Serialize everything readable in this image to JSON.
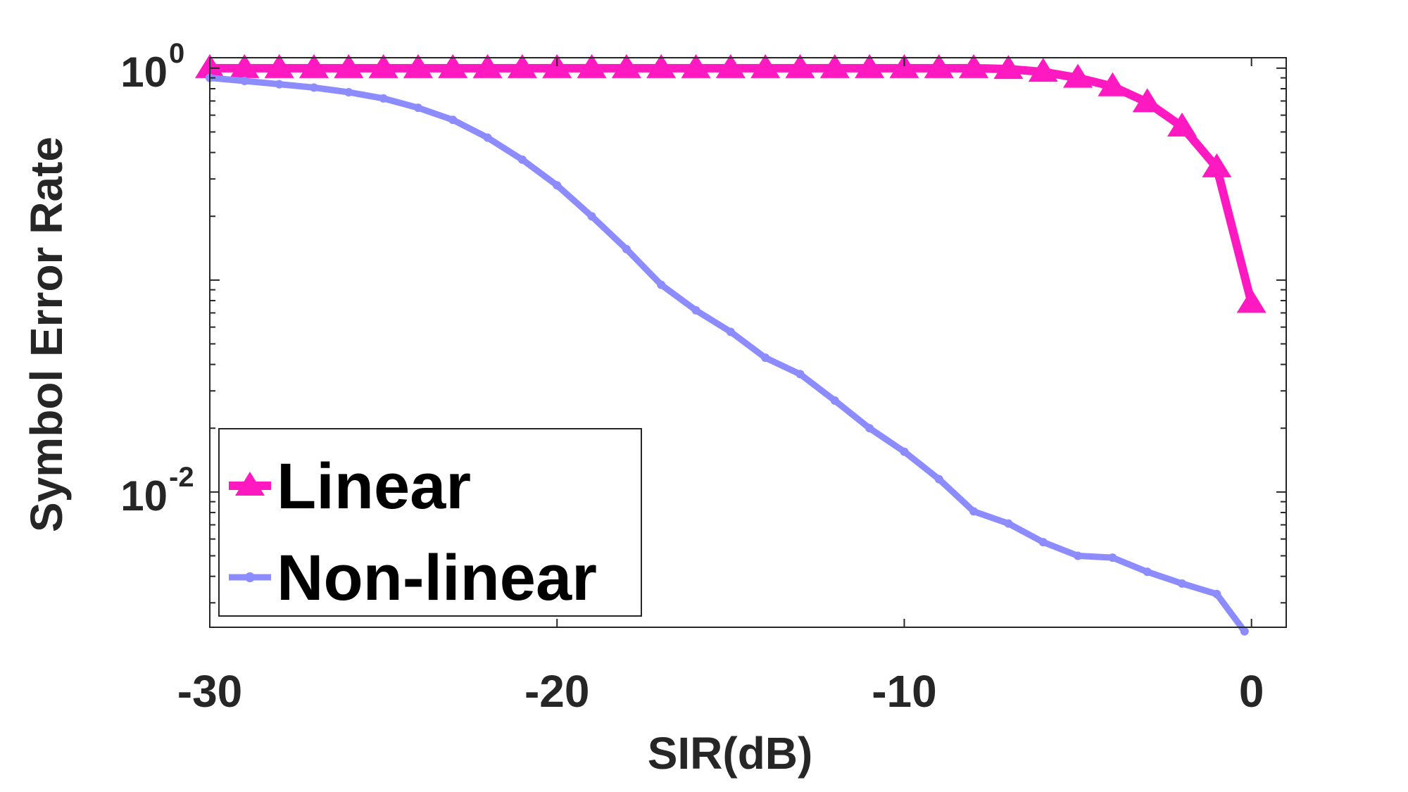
{
  "chart_data": {
    "type": "line",
    "title": "",
    "xlabel": "SIR(dB)",
    "ylabel": "Symbol Error Rate",
    "xlim": [
      -30,
      1
    ],
    "ylim": [
      0.0023,
      1.12
    ],
    "yscale": "log",
    "grid": false,
    "legend_position": "bottom-left",
    "x_ticks": [
      {
        "value": -30,
        "label": "-30"
      },
      {
        "value": -20,
        "label": "-20"
      },
      {
        "value": -10,
        "label": "-10"
      },
      {
        "value": 0,
        "label": "0"
      }
    ],
    "y_ticks": [
      {
        "value": 1,
        "base": "10",
        "exp": "0"
      },
      {
        "value": 0.01,
        "base": "10",
        "exp": "-2"
      }
    ],
    "series": [
      {
        "name": "Linear",
        "color": "#ff19c0",
        "marker": "triangle",
        "x": [
          -30,
          -29,
          -28,
          -27,
          -26,
          -25,
          -24,
          -23,
          -22,
          -21,
          -20,
          -19,
          -18,
          -17,
          -16,
          -15,
          -14,
          -13,
          -12,
          -11,
          -10,
          -9,
          -8,
          -7,
          -6,
          -5,
          -4,
          -3,
          -2,
          -1,
          0
        ],
        "y": [
          1,
          1,
          1,
          1,
          1,
          1,
          1,
          1,
          1,
          1,
          1,
          1,
          1,
          1,
          1,
          1,
          1,
          1,
          1,
          1,
          1,
          1,
          1,
          0.99,
          0.96,
          0.9,
          0.82,
          0.69,
          0.53,
          0.34,
          0.078
        ]
      },
      {
        "name": "Non-linear",
        "color": "#8c8cff",
        "marker": "dot",
        "x": [
          -30,
          -29,
          -28,
          -27,
          -26,
          -25,
          -24,
          -23,
          -22,
          -21,
          -20,
          -19,
          -18,
          -17,
          -16,
          -15,
          -14,
          -13,
          -12,
          -11,
          -10,
          -9,
          -8,
          -7,
          -6,
          -5,
          -4,
          -3,
          -2,
          -1,
          -0.2
        ],
        "y": [
          0.9,
          0.87,
          0.84,
          0.81,
          0.77,
          0.72,
          0.65,
          0.57,
          0.47,
          0.37,
          0.28,
          0.2,
          0.14,
          0.095,
          0.072,
          0.057,
          0.043,
          0.036,
          0.027,
          0.02,
          0.0155,
          0.0115,
          0.0081,
          0.0071,
          0.0058,
          0.005,
          0.0049,
          0.0042,
          0.0037,
          0.0033,
          0.0022
        ]
      }
    ]
  }
}
